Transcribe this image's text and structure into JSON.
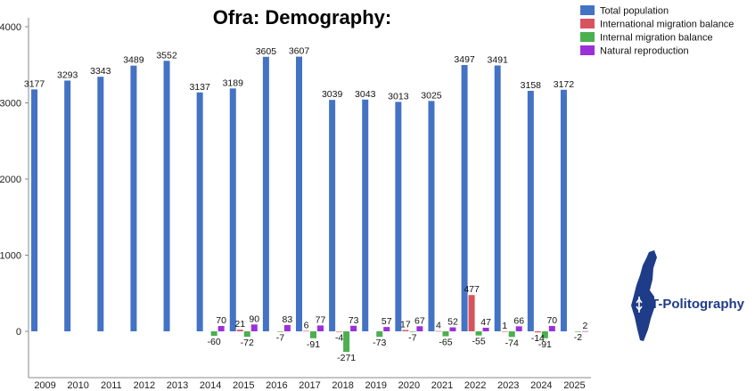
{
  "chart_data": {
    "type": "bar",
    "title": "Ofra: Demography:",
    "xlabel": "",
    "ylabel": "",
    "ylim": [
      -400,
      4000
    ],
    "yticks": [
      0,
      1000,
      2000,
      3000,
      4000
    ],
    "grid": false,
    "legend_position": "top-right",
    "categories": [
      "2009",
      "2010",
      "2011",
      "2012",
      "2013",
      "2014",
      "2015",
      "2016",
      "2017",
      "2018",
      "2019",
      "2020",
      "2021",
      "2022",
      "2023",
      "2024",
      "2025"
    ],
    "series": [
      {
        "name": "Total population",
        "color": "#4472c4",
        "values": [
          3177,
          3293,
          3343,
          3489,
          3552,
          3137,
          3189,
          3605,
          3607,
          3039,
          3043,
          3013,
          3025,
          3497,
          3491,
          3158,
          3172
        ]
      },
      {
        "name": "International migration balance",
        "color": "#d9535f",
        "values": [
          null,
          null,
          null,
          null,
          null,
          null,
          21,
          null,
          6,
          -4,
          null,
          17,
          4,
          477,
          1,
          -14,
          null
        ]
      },
      {
        "name": "Internal migration balance",
        "color": "#4caf50",
        "values": [
          null,
          null,
          null,
          null,
          null,
          -60,
          -72,
          -7,
          -91,
          -271,
          -73,
          -7,
          -65,
          -55,
          -74,
          -91,
          -2
        ]
      },
      {
        "name": "Natural reproduction",
        "color": "#9b30d9",
        "values": [
          null,
          null,
          null,
          null,
          null,
          70,
          90,
          83,
          77,
          73,
          57,
          67,
          52,
          47,
          66,
          70,
          2
        ]
      }
    ]
  },
  "logo": {
    "text": "T-Politography",
    "icon": "israel-map-icon",
    "color": "#1f3c88"
  }
}
